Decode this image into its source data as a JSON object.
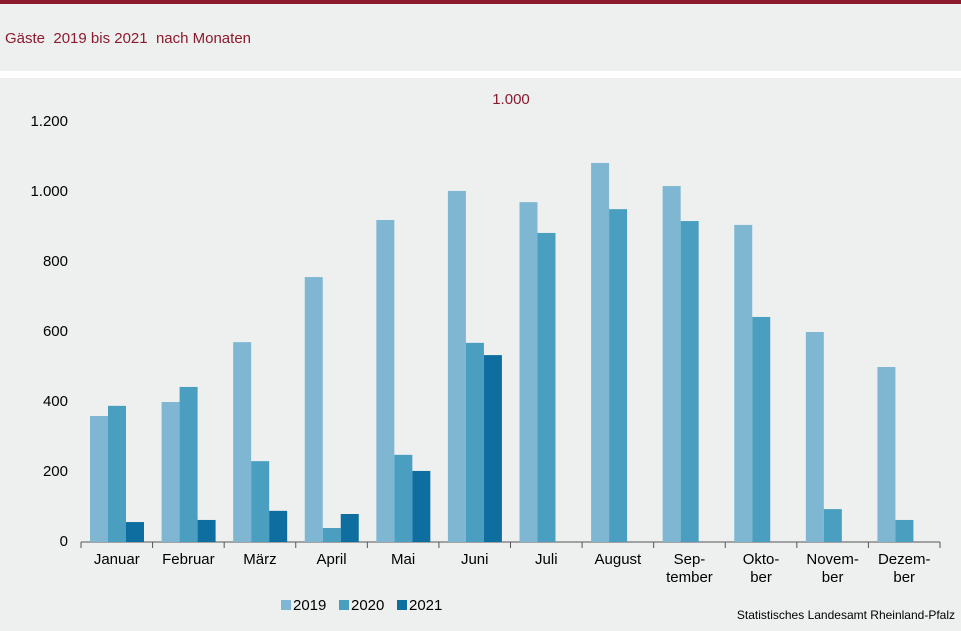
{
  "chart_data": {
    "type": "bar",
    "title": "Gäste  2019 bis 2021  nach Monaten",
    "unit_label": "1.000",
    "source": "Statistisches Landesamt Rheinland-Pfalz",
    "categories": [
      "Januar",
      "Februar",
      "März",
      "April",
      "Mai",
      "Juni",
      "Juli",
      "August",
      "Sep-\ntember",
      "Okto-\nber",
      "Novem-\nber",
      "Dezem-\nber"
    ],
    "series": [
      {
        "name": "2019",
        "color": "#7fb7d3",
        "values": [
          360,
          400,
          571,
          757,
          920,
          1003,
          971,
          1083,
          1017,
          906,
          600,
          500
        ]
      },
      {
        "name": "2020",
        "color": "#4a9fc1",
        "values": [
          389,
          443,
          231,
          40,
          249,
          569,
          883,
          951,
          917,
          643,
          94,
          63
        ]
      },
      {
        "name": "2021",
        "color": "#0f6ea0",
        "values": [
          57,
          63,
          89,
          80,
          203,
          534,
          null,
          null,
          null,
          null,
          null,
          null
        ]
      }
    ],
    "ylim": [
      0,
      1200
    ],
    "yticks": [
      0,
      200,
      400,
      600,
      800,
      {
        "value": 1000,
        "label": "1.000"
      },
      {
        "value": 1200,
        "label": "1.200"
      }
    ],
    "legend": "bottom"
  }
}
